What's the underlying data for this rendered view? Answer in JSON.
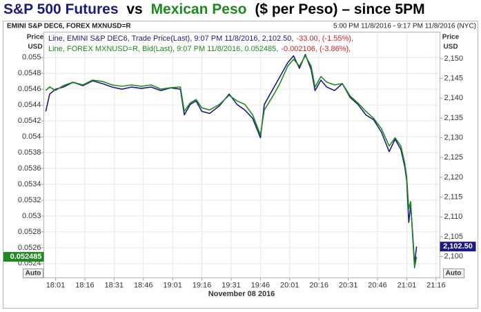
{
  "chart_data": {
    "type": "line",
    "title_parts": [
      {
        "text": "S&P 500 Futures",
        "color": "#1a1a80"
      },
      {
        "text": "vs",
        "color": "#000000"
      },
      {
        "text": "Mexican Peso",
        "color": "#1e8a1e"
      },
      {
        "text": "($ per Peso) – since 5PM",
        "color": "#000000"
      }
    ],
    "header": "EMINI S&P DEC6, FOREX MXNUSD=R",
    "time_range": "5:00 PM 11/8/2016 - 9:17 PM 11/8/2016 (NYC)",
    "x_label": "November 08 2016",
    "y_label": [
      "Price",
      "USD"
    ],
    "y2_label": [
      "Price",
      "USD"
    ],
    "auto_button": "Auto",
    "grid": true,
    "change_color": "#d42020",
    "x": [
      "17:56",
      "17:58",
      "18:01",
      "18:05",
      "18:10",
      "18:15",
      "18:20",
      "18:25",
      "18:30",
      "18:35",
      "18:40",
      "18:45",
      "18:50",
      "18:55",
      "19:00",
      "19:05",
      "19:07",
      "19:10",
      "19:13",
      "19:16",
      "19:20",
      "19:25",
      "19:30",
      "19:34",
      "19:38",
      "19:42",
      "19:46",
      "19:48",
      "19:52",
      "19:56",
      "20:00",
      "20:03",
      "20:06",
      "20:09",
      "20:12",
      "20:14",
      "20:17",
      "20:20",
      "20:24",
      "20:28",
      "20:32",
      "20:36",
      "20:40",
      "20:44",
      "20:48",
      "20:52",
      "20:55",
      "20:58",
      "21:00",
      "21:01",
      "21:02",
      "21:03",
      "21:04",
      "21:05",
      "21:06"
    ],
    "xlim": [
      "17:55",
      "21:18"
    ],
    "xticks": [
      "18:01",
      "18:16",
      "18:31",
      "18:46",
      "19:01",
      "19:16",
      "19:31",
      "19:46",
      "20:01",
      "20:16",
      "20:31",
      "20:46",
      "21:01",
      "21:16"
    ],
    "ylim": [
      0.05222,
      0.05532
    ],
    "yticks": [
      0.0524,
      0.0526,
      0.0528,
      0.053,
      0.0532,
      0.0534,
      0.0536,
      0.0538,
      0.054,
      0.0542,
      0.0544,
      0.0546,
      0.0548,
      0.055
    ],
    "y2lim": [
      2094.6,
      2156.7
    ],
    "y2ticks": [
      {
        "value": 2100,
        "label": "2,100"
      },
      {
        "value": 2105,
        "label": "2,105"
      },
      {
        "value": 2110,
        "label": "2,110"
      },
      {
        "value": 2115,
        "label": "2,115"
      },
      {
        "value": 2120,
        "label": "2,120"
      },
      {
        "value": 2125,
        "label": "2,125"
      },
      {
        "value": 2130,
        "label": "2,130"
      },
      {
        "value": 2135,
        "label": "2,135"
      },
      {
        "value": 2140,
        "label": "2,140"
      },
      {
        "value": 2145,
        "label": "2,145"
      },
      {
        "value": 2150,
        "label": "2,150"
      }
    ],
    "series": [
      {
        "name": "Line, EMINI S&P DEC6, Trade Price(Last), 9:07 PM 11/8/2016, 2,102.50,",
        "change": "-33.00, (-1.55%),",
        "color": "#1a1a80",
        "axis": "y2",
        "current": 2102.5,
        "current_label": "2,102.50",
        "values": [
          2136.67,
          2141.05,
          2142.28,
          2142.81,
          2144.04,
          2143.16,
          2144.39,
          2143.68,
          2142.81,
          2142.28,
          2142.81,
          2142.46,
          2142.81,
          2141.93,
          2142.63,
          2142.28,
          2135.79,
          2138.42,
          2139.3,
          2136.67,
          2136.14,
          2138.07,
          2141.05,
          2138.42,
          2137.02,
          2134.91,
          2130.0,
          2138.42,
          2141.93,
          2145.44,
          2148.95,
          2150.7,
          2147.54,
          2151.05,
          2147.19,
          2141.93,
          2144.56,
          2142.81,
          2141.93,
          2143.68,
          2140.18,
          2138.42,
          2135.79,
          2134.56,
          2131.4,
          2126.49,
          2129.65,
          2127.02,
          2122.63,
          2119.12,
          2108.6,
          2112.98,
          2105.96,
          2098.07,
          2102.5
        ]
      },
      {
        "name": "Line, FOREX MXNUSD=R, Bid(Last), 9:07 PM 11/8/2016, 0.052485,",
        "change": "-0.002106, (-3.86%),",
        "color": "#1e8a1e",
        "axis": "y",
        "current": 0.052485,
        "values": [
          0.054584,
          0.054628,
          0.054584,
          0.054645,
          0.054689,
          0.054654,
          0.054715,
          0.054698,
          0.054654,
          0.054636,
          0.054654,
          0.054636,
          0.054654,
          0.054601,
          0.054619,
          0.054628,
          0.054321,
          0.054426,
          0.05447,
          0.054364,
          0.054338,
          0.054408,
          0.054522,
          0.054452,
          0.054408,
          0.054277,
          0.054022,
          0.054338,
          0.054496,
          0.054671,
          0.054891,
          0.054978,
          0.054891,
          0.055022,
          0.054891,
          0.054628,
          0.054759,
          0.054689,
          0.054654,
          0.054671,
          0.054514,
          0.054426,
          0.054321,
          0.054233,
          0.054101,
          0.053882,
          0.053987,
          0.053882,
          0.053663,
          0.053487,
          0.053093,
          0.053181,
          0.052742,
          0.052347,
          0.052485
        ]
      }
    ]
  }
}
